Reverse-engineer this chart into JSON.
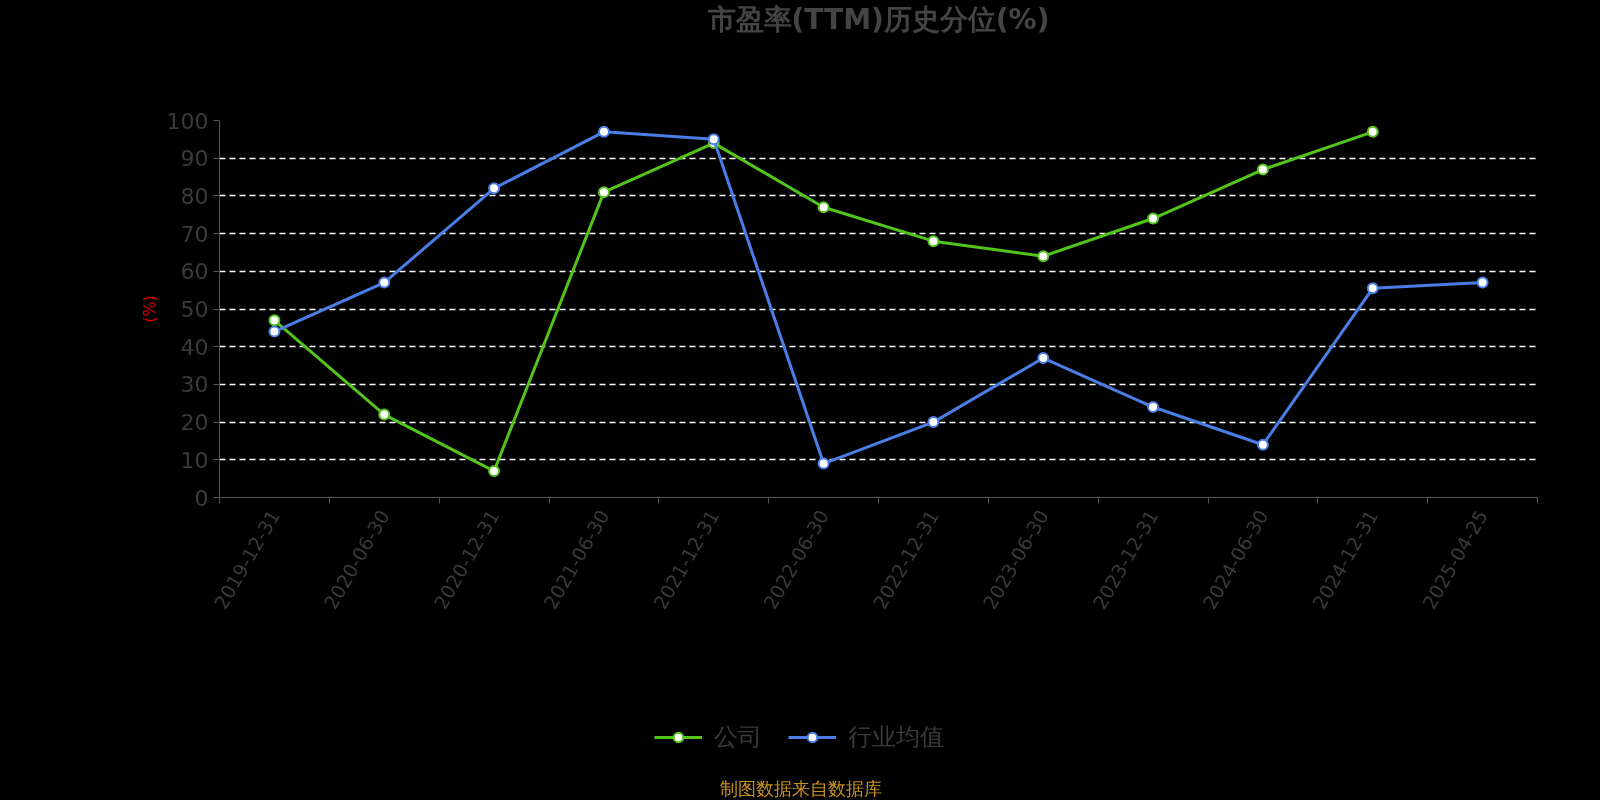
{
  "chart_data": {
    "type": "line",
    "title": "市盈率(TTM)历史分位(%)",
    "ylabel": "(%)",
    "categories": [
      "2019-12-31",
      "2020-06-30",
      "2020-12-31",
      "2021-06-30",
      "2021-12-31",
      "2022-06-30",
      "2022-12-31",
      "2023-06-30",
      "2023-12-31",
      "2024-06-30",
      "2024-12-31",
      "2025-04-25"
    ],
    "series": [
      {
        "name": "公司",
        "color": "#52c41a",
        "values": [
          47,
          22,
          7,
          81,
          94,
          77,
          68,
          64,
          74,
          87,
          97,
          null
        ]
      },
      {
        "name": "行业均值",
        "color": "#4a7ee6",
        "values": [
          44,
          57,
          82,
          97,
          95,
          9,
          20,
          37,
          24,
          14,
          55.5,
          57
        ]
      }
    ],
    "ylim": [
      0,
      100
    ],
    "yticks": [
      0,
      10,
      20,
      30,
      40,
      50,
      60,
      70,
      80,
      90,
      100
    ],
    "grid": "y",
    "legend": "bottom",
    "marker": "circle",
    "line_style": "solid",
    "annotations": [
      "制图数据来自数据库"
    ]
  }
}
